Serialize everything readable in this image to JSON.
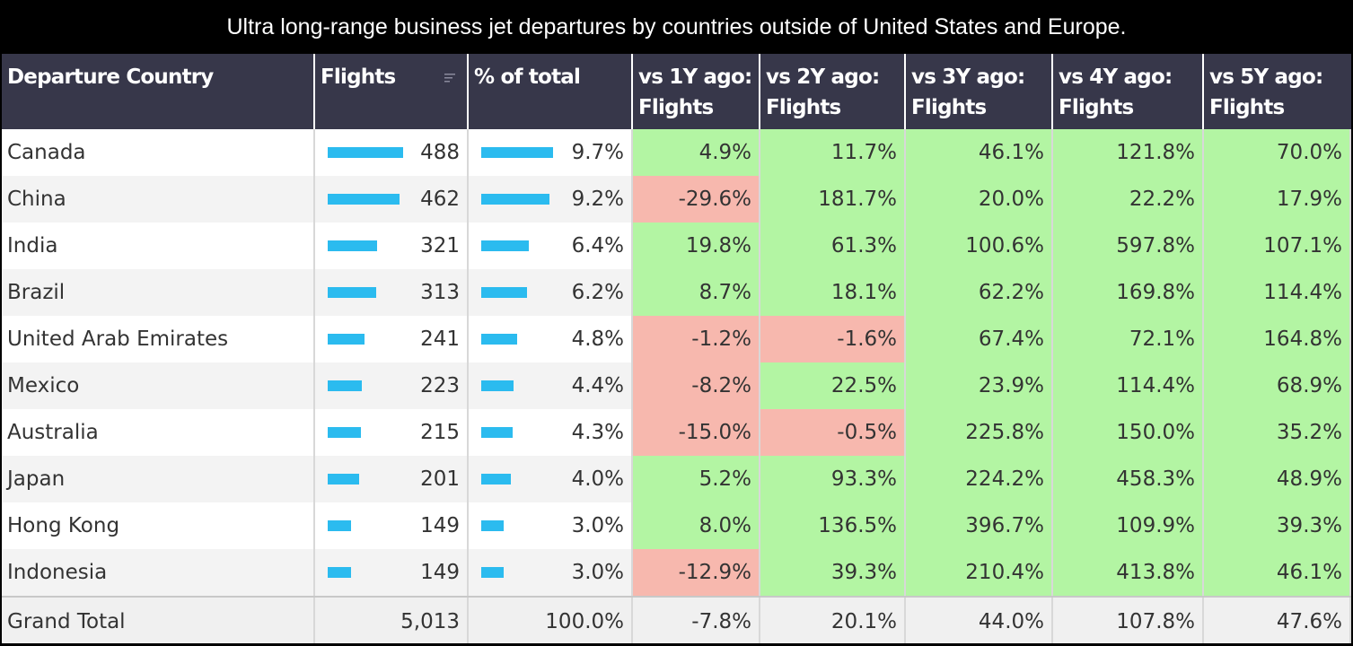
{
  "title": "Ultra long-range business jet departures by countries outside of United States and Europe.",
  "colors": {
    "header_bg": "#37374a",
    "bar": "#2bbbef",
    "positive": "#b3f5a3",
    "negative": "#f7b8ae"
  },
  "icons": {
    "sort": "sort-icon"
  },
  "columns": [
    {
      "line1": "Departure Country",
      "line2": ""
    },
    {
      "line1": "Flights",
      "line2": ""
    },
    {
      "line1": "% of total",
      "line2": ""
    },
    {
      "line1": "vs 1Y ago:",
      "line2": "Flights"
    },
    {
      "line1": "vs 2Y ago:",
      "line2": "Flights"
    },
    {
      "line1": "vs 3Y ago:",
      "line2": "Flights"
    },
    {
      "line1": "vs 4Y ago:",
      "line2": "Flights"
    },
    {
      "line1": "vs 5Y ago:",
      "line2": "Flights"
    }
  ],
  "chart_data": {
    "type": "table",
    "title": "Ultra long-range business jet departures by countries outside of United States and Europe.",
    "rows": [
      {
        "country": "Canada",
        "flights": 488,
        "flights_label": "488",
        "pct": 9.7,
        "pct_label": "9.7%",
        "vs1y": "4.9%",
        "vs2y": "11.7%",
        "vs3y": "46.1%",
        "vs4y": "121.8%",
        "vs5y": "70.0%"
      },
      {
        "country": "China",
        "flights": 462,
        "flights_label": "462",
        "pct": 9.2,
        "pct_label": "9.2%",
        "vs1y": "-29.6%",
        "vs2y": "181.7%",
        "vs3y": "20.0%",
        "vs4y": "22.2%",
        "vs5y": "17.9%"
      },
      {
        "country": "India",
        "flights": 321,
        "flights_label": "321",
        "pct": 6.4,
        "pct_label": "6.4%",
        "vs1y": "19.8%",
        "vs2y": "61.3%",
        "vs3y": "100.6%",
        "vs4y": "597.8%",
        "vs5y": "107.1%"
      },
      {
        "country": "Brazil",
        "flights": 313,
        "flights_label": "313",
        "pct": 6.2,
        "pct_label": "6.2%",
        "vs1y": "8.7%",
        "vs2y": "18.1%",
        "vs3y": "62.2%",
        "vs4y": "169.8%",
        "vs5y": "114.4%"
      },
      {
        "country": "United Arab Emirates",
        "flights": 241,
        "flights_label": "241",
        "pct": 4.8,
        "pct_label": "4.8%",
        "vs1y": "-1.2%",
        "vs2y": "-1.6%",
        "vs3y": "67.4%",
        "vs4y": "72.1%",
        "vs5y": "164.8%"
      },
      {
        "country": "Mexico",
        "flights": 223,
        "flights_label": "223",
        "pct": 4.4,
        "pct_label": "4.4%",
        "vs1y": "-8.2%",
        "vs2y": "22.5%",
        "vs3y": "23.9%",
        "vs4y": "114.4%",
        "vs5y": "68.9%"
      },
      {
        "country": "Australia",
        "flights": 215,
        "flights_label": "215",
        "pct": 4.3,
        "pct_label": "4.3%",
        "vs1y": "-15.0%",
        "vs2y": "-0.5%",
        "vs3y": "225.8%",
        "vs4y": "150.0%",
        "vs5y": "35.2%"
      },
      {
        "country": "Japan",
        "flights": 201,
        "flights_label": "201",
        "pct": 4.0,
        "pct_label": "4.0%",
        "vs1y": "5.2%",
        "vs2y": "93.3%",
        "vs3y": "224.2%",
        "vs4y": "458.3%",
        "vs5y": "48.9%"
      },
      {
        "country": "Hong Kong",
        "flights": 149,
        "flights_label": "149",
        "pct": 3.0,
        "pct_label": "3.0%",
        "vs1y": "8.0%",
        "vs2y": "136.5%",
        "vs3y": "396.7%",
        "vs4y": "109.9%",
        "vs5y": "39.3%"
      },
      {
        "country": "Indonesia",
        "flights": 149,
        "flights_label": "149",
        "pct": 3.0,
        "pct_label": "3.0%",
        "vs1y": "-12.9%",
        "vs2y": "39.3%",
        "vs3y": "210.4%",
        "vs4y": "413.8%",
        "vs5y": "46.1%"
      }
    ],
    "total": {
      "country": "Grand Total",
      "flights_label": "5,013",
      "pct_label": "100.0%",
      "vs1y": "-7.8%",
      "vs2y": "20.1%",
      "vs3y": "44.0%",
      "vs4y": "107.8%",
      "vs5y": "47.6%"
    }
  }
}
